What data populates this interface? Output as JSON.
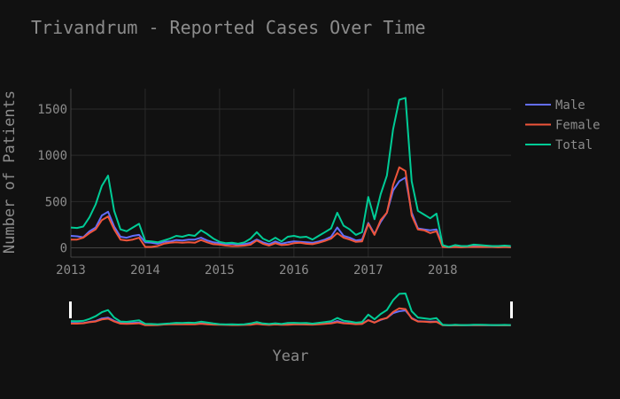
{
  "chart_data": {
    "type": "line",
    "title": "Trivandrum - Reported Cases Over Time",
    "xlabel": "Year",
    "ylabel": "Number of Patients",
    "x_ticks": [
      "2013",
      "2014",
      "2015",
      "2016",
      "2017",
      "2018"
    ],
    "y_ticks": [
      "0",
      "500",
      "1000",
      "1500"
    ],
    "ylim": [
      -100,
      1720
    ],
    "xlim": [
      2013.0,
      2018.92
    ],
    "grid": true,
    "legend_position": "top-right",
    "rangeslider": true,
    "colors": {
      "Male": "#636efa",
      "Female": "#ef553b",
      "Total": "#00cc96"
    },
    "x": [
      2013.0,
      2013.083,
      2013.167,
      2013.25,
      2013.333,
      2013.417,
      2013.5,
      2013.583,
      2013.667,
      2013.75,
      2013.833,
      2013.917,
      2014.0,
      2014.083,
      2014.167,
      2014.25,
      2014.333,
      2014.417,
      2014.5,
      2014.583,
      2014.667,
      2014.75,
      2014.833,
      2014.917,
      2015.0,
      2015.083,
      2015.167,
      2015.25,
      2015.333,
      2015.417,
      2015.5,
      2015.583,
      2015.667,
      2015.75,
      2015.833,
      2015.917,
      2016.0,
      2016.083,
      2016.167,
      2016.25,
      2016.333,
      2016.417,
      2016.5,
      2016.583,
      2016.667,
      2016.75,
      2016.833,
      2016.917,
      2017.0,
      2017.083,
      2017.167,
      2017.25,
      2017.333,
      2017.417,
      2017.5,
      2017.583,
      2017.667,
      2017.75,
      2017.833,
      2017.917,
      2018.0,
      2018.083,
      2018.167,
      2018.25,
      2018.333,
      2018.417,
      2018.5,
      2018.583,
      2018.667,
      2018.75,
      2018.833,
      2018.917
    ],
    "series": [
      {
        "name": "Male",
        "values": [
          130,
          125,
          115,
          180,
          220,
          350,
          390,
          230,
          120,
          110,
          130,
          140,
          60,
          55,
          45,
          65,
          70,
          85,
          80,
          90,
          90,
          110,
          80,
          60,
          50,
          40,
          45,
          35,
          40,
          55,
          90,
          60,
          40,
          70,
          45,
          60,
          70,
          65,
          60,
          55,
          70,
          90,
          120,
          220,
          130,
          110,
          80,
          90,
          270,
          150,
          280,
          380,
          620,
          720,
          760,
          380,
          210,
          200,
          190,
          200,
          20,
          5,
          15,
          10,
          15,
          20,
          15,
          15,
          10,
          10,
          15,
          10
        ]
      },
      {
        "name": "Female",
        "values": [
          90,
          90,
          110,
          160,
          200,
          300,
          340,
          200,
          90,
          80,
          90,
          110,
          10,
          10,
          20,
          45,
          55,
          60,
          55,
          60,
          55,
          85,
          60,
          40,
          35,
          25,
          20,
          20,
          25,
          35,
          80,
          45,
          25,
          50,
          30,
          35,
          50,
          55,
          45,
          40,
          55,
          75,
          100,
          160,
          110,
          90,
          65,
          70,
          260,
          140,
          300,
          380,
          680,
          870,
          830,
          350,
          200,
          190,
          160,
          180,
          10,
          5,
          10,
          5,
          10,
          10,
          10,
          10,
          10,
          5,
          10,
          5
        ]
      },
      {
        "name": "Total",
        "values": [
          220,
          215,
          230,
          330,
          470,
          670,
          780,
          400,
          200,
          180,
          220,
          260,
          75,
          70,
          60,
          80,
          100,
          130,
          120,
          140,
          130,
          190,
          150,
          100,
          65,
          50,
          55,
          45,
          60,
          100,
          170,
          100,
          70,
          110,
          70,
          120,
          130,
          115,
          120,
          90,
          130,
          170,
          210,
          380,
          240,
          200,
          140,
          170,
          550,
          310,
          580,
          780,
          1280,
          1600,
          1620,
          720,
          400,
          360,
          320,
          370,
          30,
          10,
          30,
          20,
          20,
          35,
          30,
          25,
          20,
          20,
          25,
          20
        ]
      }
    ]
  }
}
